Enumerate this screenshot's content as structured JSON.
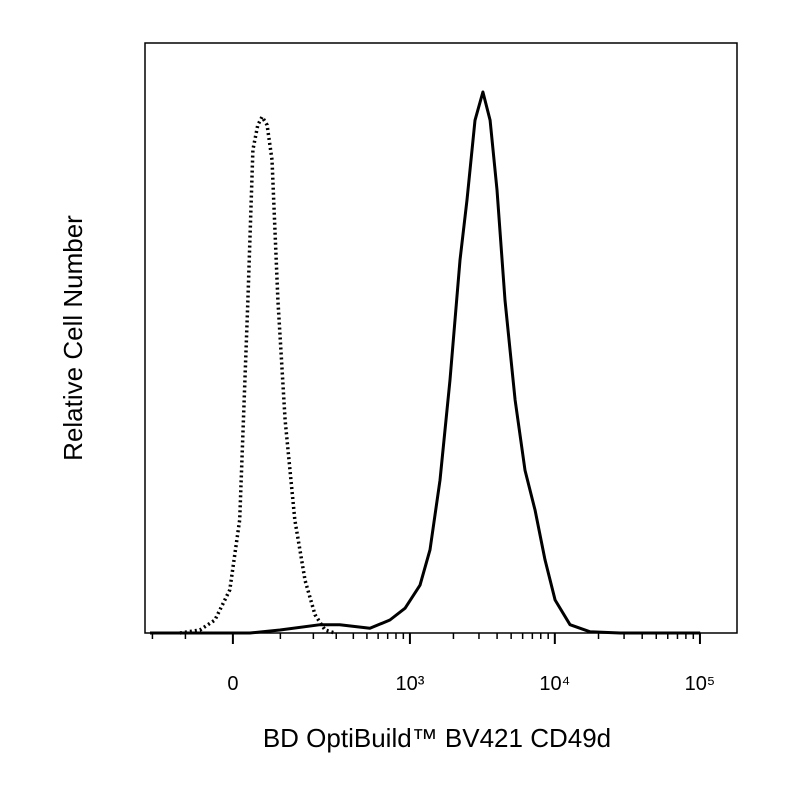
{
  "chart_data": {
    "type": "histogram-overlay",
    "x_label": "BD OptiBuild™ BV421 CD49d",
    "y_label": "Relative Cell Number",
    "xscale": "biexponential",
    "xlim": [
      -229,
      180000
    ],
    "ylim": [
      0,
      100
    ],
    "xticks": [
      0,
      {
        "value": 1000,
        "label": "10³"
      },
      {
        "value": 10000,
        "label": "10⁴"
      },
      {
        "value": 100000,
        "label": "10⁵"
      }
    ],
    "xminorticks": [
      -200,
      -100,
      100,
      200,
      300,
      400,
      500,
      600,
      700,
      800,
      900,
      2000,
      3000,
      4000,
      5000,
      6000,
      7000,
      8000,
      9000,
      20000,
      30000,
      40000,
      50000,
      60000,
      70000,
      80000,
      90000
    ],
    "series": [
      {
        "color": "#000000",
        "dash": "dotted",
        "x": [
          -114,
          -66,
          -35,
          -6,
          13,
          29,
          39,
          49,
          58,
          69,
          80,
          94,
          112,
          139,
          171,
          206,
          247,
          293
        ],
        "values": [
          0,
          0.5,
          2.2,
          7.3,
          19.2,
          56.4,
          81.9,
          86.1,
          87.5,
          86.1,
          80.2,
          56.4,
          36.1,
          19.2,
          8.9,
          3.1,
          0.5,
          0
        ]
      },
      {
        "color": "#000000",
        "dash": "solid",
        "x": [
          -209,
          33,
          99,
          226,
          318,
          525,
          726,
          925,
          1174,
          1377,
          1615,
          1893,
          2220,
          2481,
          2819,
          3194,
          3582,
          3993,
          4538,
          5324,
          6232,
          7308,
          8555,
          10043,
          12729,
          17497,
          28157,
          100430
        ],
        "values": [
          0,
          0,
          0.5,
          1.4,
          1.4,
          0.8,
          2.2,
          4.2,
          8.1,
          14.1,
          25.9,
          42.9,
          63.2,
          73.4,
          86.9,
          91.7,
          86.9,
          75.1,
          56.4,
          39.5,
          27.6,
          20.8,
          12.4,
          5.6,
          1.4,
          0.2,
          0,
          0
        ]
      }
    ]
  }
}
